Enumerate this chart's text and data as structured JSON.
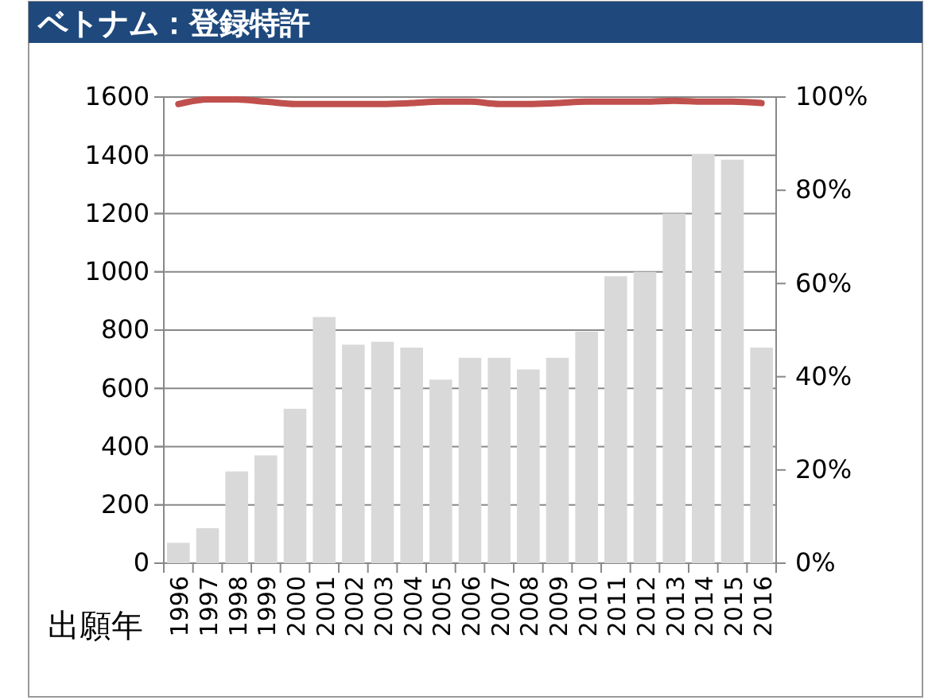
{
  "chart_data": {
    "type": "bar",
    "title": "ベトナム：登録特許",
    "xlabel": "出願年",
    "categories": [
      "1996",
      "1997",
      "1998",
      "1999",
      "2000",
      "2001",
      "2002",
      "2003",
      "2004",
      "2005",
      "2006",
      "2007",
      "2008",
      "2009",
      "2010",
      "2011",
      "2012",
      "2013",
      "2014",
      "2015",
      "2016"
    ],
    "series": [
      {
        "color": "#d9d9d9",
        "values": [
          70,
          120,
          315,
          370,
          530,
          845,
          750,
          760,
          740,
          630,
          705,
          705,
          665,
          705,
          795,
          985,
          1000,
          1200,
          1405,
          1385,
          740
        ]
      },
      {
        "type": "line",
        "axis": "y2",
        "color": "#c0504d",
        "values": [
          98.5,
          99.5,
          99.5,
          99,
          98.5,
          98.5,
          98.5,
          98.5,
          98.7,
          99,
          99,
          98.5,
          98.5,
          98.7,
          99,
          99,
          99,
          99.2,
          99,
          99,
          98.7
        ]
      }
    ],
    "ylim": [
      0,
      1600
    ],
    "yticks": [
      0,
      200,
      400,
      600,
      800,
      1000,
      1200,
      1400,
      1600
    ],
    "y2lim": [
      0,
      100
    ],
    "y2ticks": [
      {
        "value": 0,
        "label": "0%"
      },
      {
        "value": 20,
        "label": "20%"
      },
      {
        "value": 40,
        "label": "40%"
      },
      {
        "value": 60,
        "label": "60%"
      },
      {
        "value": 80,
        "label": "80%"
      },
      {
        "value": 100,
        "label": "100%"
      }
    ],
    "grid": "y"
  }
}
